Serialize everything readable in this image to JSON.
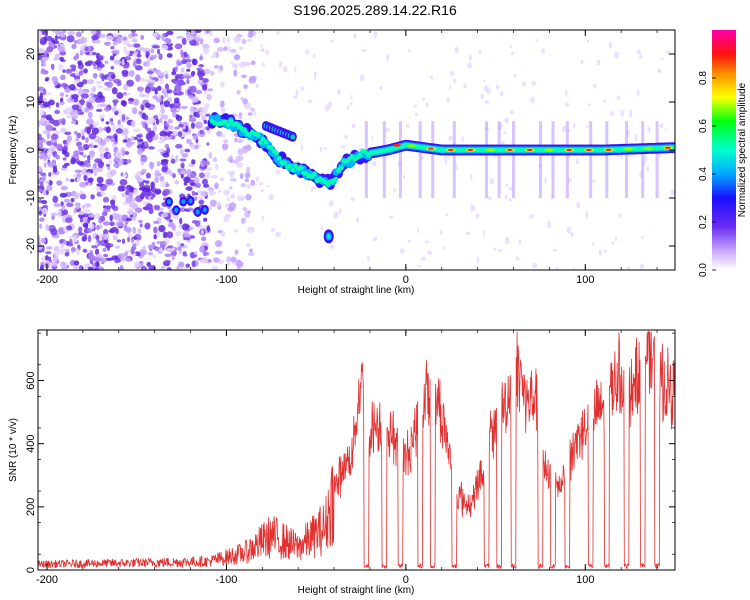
{
  "title": "S196.2025.289.14.22.R16",
  "chart_data": [
    {
      "type": "heatmap",
      "xlabel": "Height of straight line (km)",
      "ylabel": "Frequency (Hz)",
      "xlim": [
        -205,
        150
      ],
      "ylim": [
        -25,
        25
      ],
      "xticks": [
        -200,
        -100,
        0,
        100
      ],
      "yticks": [
        -20,
        -10,
        0,
        10,
        20
      ],
      "colorbar": {
        "label": "Normalized spectral amplitude",
        "range": [
          0.0,
          1.0
        ],
        "ticks": [
          "0.0",
          "0.2",
          "0.4",
          "0.6",
          "0.8"
        ],
        "colormap": [
          "#ffffff",
          "#d8b8ff",
          "#7a3cf0",
          "#2200ff",
          "#00aaff",
          "#00ffcc",
          "#00ff00",
          "#ffff00",
          "#ff8800",
          "#ff0000",
          "#ff00aa"
        ]
      },
      "ridge": [
        {
          "x": -108,
          "y": 6
        },
        {
          "x": -100,
          "y": 6
        },
        {
          "x": -90,
          "y": 4
        },
        {
          "x": -80,
          "y": 2
        },
        {
          "x": -70,
          "y": -2
        },
        {
          "x": -60,
          "y": -4
        },
        {
          "x": -50,
          "y": -6
        },
        {
          "x": -42,
          "y": -7
        },
        {
          "x": -35,
          "y": -3
        },
        {
          "x": -25,
          "y": -1
        },
        {
          "x": -10,
          "y": 0
        },
        {
          "x": 0,
          "y": 1
        },
        {
          "x": 20,
          "y": 0
        },
        {
          "x": 50,
          "y": 0
        },
        {
          "x": 80,
          "y": 0
        },
        {
          "x": 110,
          "y": 0
        },
        {
          "x": 150,
          "y": 0.5
        }
      ],
      "features": [
        {
          "name": "late blob",
          "x": -43,
          "y": -18
        },
        {
          "name": "low-freq cluster",
          "x": -120,
          "y": -12
        }
      ]
    },
    {
      "type": "line",
      "xlabel": "Height of straight line (km)",
      "ylabel": "SNR (10 * v/v)",
      "xlim": [
        -205,
        150
      ],
      "ylim": [
        0,
        760
      ],
      "xticks": [
        -200,
        -100,
        0,
        100
      ],
      "yticks": [
        0,
        200,
        400,
        600
      ],
      "color": "#e03030",
      "envelope": [
        {
          "x": -205,
          "y": 20
        },
        {
          "x": -150,
          "y": 25
        },
        {
          "x": -110,
          "y": 30
        },
        {
          "x": -90,
          "y": 60
        },
        {
          "x": -75,
          "y": 120
        },
        {
          "x": -60,
          "y": 80
        },
        {
          "x": -45,
          "y": 150
        },
        {
          "x": -40,
          "y": 280
        },
        {
          "x": -30,
          "y": 400
        },
        {
          "x": -25,
          "y": 650
        },
        {
          "x": -20,
          "y": 480
        },
        {
          "x": -15,
          "y": 500
        },
        {
          "x": -8,
          "y": 470
        },
        {
          "x": 0,
          "y": 380
        },
        {
          "x": 5,
          "y": 470
        },
        {
          "x": 12,
          "y": 620
        },
        {
          "x": 18,
          "y": 580
        },
        {
          "x": 22,
          "y": 470
        },
        {
          "x": 28,
          "y": 260
        },
        {
          "x": 35,
          "y": 220
        },
        {
          "x": 42,
          "y": 320
        },
        {
          "x": 48,
          "y": 470
        },
        {
          "x": 55,
          "y": 560
        },
        {
          "x": 62,
          "y": 700
        },
        {
          "x": 68,
          "y": 560
        },
        {
          "x": 72,
          "y": 600
        },
        {
          "x": 78,
          "y": 320
        },
        {
          "x": 85,
          "y": 280
        },
        {
          "x": 95,
          "y": 440
        },
        {
          "x": 100,
          "y": 500
        },
        {
          "x": 110,
          "y": 560
        },
        {
          "x": 118,
          "y": 680
        },
        {
          "x": 125,
          "y": 620
        },
        {
          "x": 135,
          "y": 740
        },
        {
          "x": 142,
          "y": 650
        },
        {
          "x": 150,
          "y": 600
        }
      ],
      "dropouts": [
        -22,
        -12,
        -3,
        8,
        15,
        27,
        45,
        52,
        60,
        75,
        82,
        90,
        103,
        112,
        123,
        132,
        140
      ]
    }
  ]
}
